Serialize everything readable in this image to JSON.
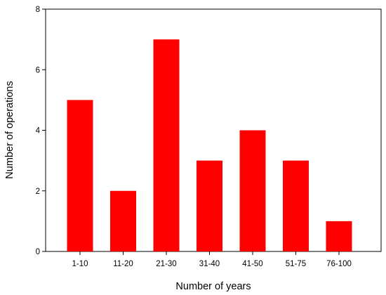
{
  "chart_data": {
    "type": "bar",
    "title": "",
    "xlabel": "Number of years",
    "ylabel": "Number of operations",
    "categories": [
      "1-10",
      "11-20",
      "21-30",
      "31-40",
      "41-50",
      "51-75",
      "76-100"
    ],
    "values": [
      5,
      2,
      7,
      3,
      4,
      3,
      1
    ],
    "ylim": [
      0,
      8
    ],
    "yticks": [
      0,
      2,
      4,
      6,
      8
    ],
    "grid": false,
    "legend": "none",
    "bar_color": "#ff0000"
  }
}
